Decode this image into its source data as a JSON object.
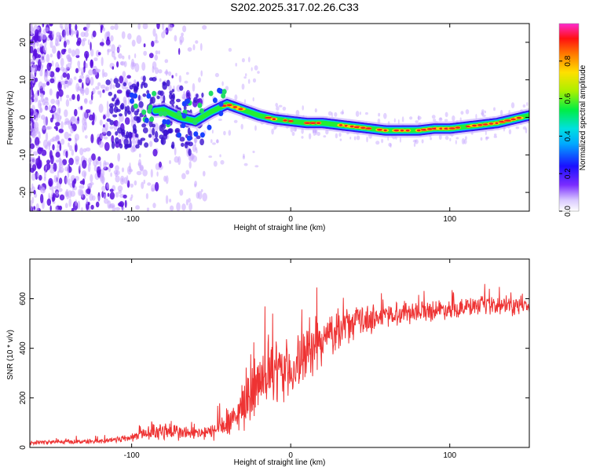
{
  "title": "S202.2025.317.02.26.C33",
  "colors": {
    "trace": "#ee3333",
    "axis": "#000000",
    "background": "#ffffff",
    "speckle": "#5a14e6"
  },
  "chart_data": [
    {
      "type": "heatmap",
      "name": "spectrogram",
      "xlabel": "Height of straight line (km)",
      "ylabel": "Frequency (Hz)",
      "xlim": [
        -164,
        150
      ],
      "ylim": [
        -25,
        25
      ],
      "xticks": [
        -100,
        0,
        100
      ],
      "yticks": [
        -20,
        -10,
        0,
        10,
        20
      ],
      "xtick_labels": [
        "-100",
        "0",
        "100"
      ],
      "ytick_labels": [
        "-20",
        "-10",
        "0",
        "10",
        "20"
      ],
      "ridge": {
        "x": [
          -100,
          -90,
          -80,
          -70,
          -60,
          -50,
          -40,
          -30,
          -20,
          -10,
          0,
          10,
          20,
          30,
          40,
          50,
          60,
          70,
          80,
          90,
          100,
          110,
          120,
          130,
          140,
          150
        ],
        "y": [
          1,
          1.5,
          2,
          0,
          -1,
          1.5,
          3.5,
          2,
          0.5,
          -0.5,
          -1,
          -1.5,
          -1.5,
          -2,
          -2.5,
          -3,
          -3.5,
          -3.5,
          -3.5,
          -3,
          -3,
          -2.5,
          -2,
          -1.5,
          -0.5,
          0.5
        ]
      },
      "colorbar": {
        "label": "Normalized spectral amplitude",
        "range": [
          0,
          1
        ],
        "ticks": [
          0.0,
          0.2,
          0.4,
          0.6,
          0.8
        ],
        "tick_labels": [
          "0.0",
          "0.2",
          "0.4",
          "0.6",
          "0.8"
        ]
      }
    },
    {
      "type": "line",
      "name": "snr",
      "xlabel": "Height of straight line (km)",
      "ylabel": "SNR (10 * v/v)",
      "xlim": [
        -164,
        150
      ],
      "ylim": [
        0,
        760
      ],
      "xticks": [
        -100,
        0,
        100
      ],
      "yticks": [
        0,
        200,
        400,
        600
      ],
      "xtick_labels": [
        "-100",
        "0",
        "100"
      ],
      "ytick_labels": [
        "0",
        "200",
        "400",
        "600"
      ],
      "envelope": {
        "x": [
          -164,
          -120,
          -100,
          -90,
          -80,
          -70,
          -60,
          -50,
          -45,
          -40,
          -35,
          -30,
          -20,
          -10,
          0,
          10,
          20,
          30,
          40,
          50,
          60,
          70,
          80,
          90,
          100,
          120,
          150
        ],
        "mean": [
          20,
          25,
          40,
          60,
          70,
          60,
          55,
          60,
          80,
          90,
          110,
          180,
          250,
          300,
          310,
          370,
          430,
          480,
          500,
          520,
          530,
          545,
          550,
          555,
          560,
          570,
          570
        ],
        "spread": [
          10,
          12,
          20,
          35,
          50,
          40,
          30,
          40,
          60,
          60,
          80,
          120,
          140,
          150,
          140,
          130,
          110,
          90,
          80,
          70,
          60,
          55,
          50,
          50,
          45,
          45,
          45
        ]
      }
    }
  ]
}
